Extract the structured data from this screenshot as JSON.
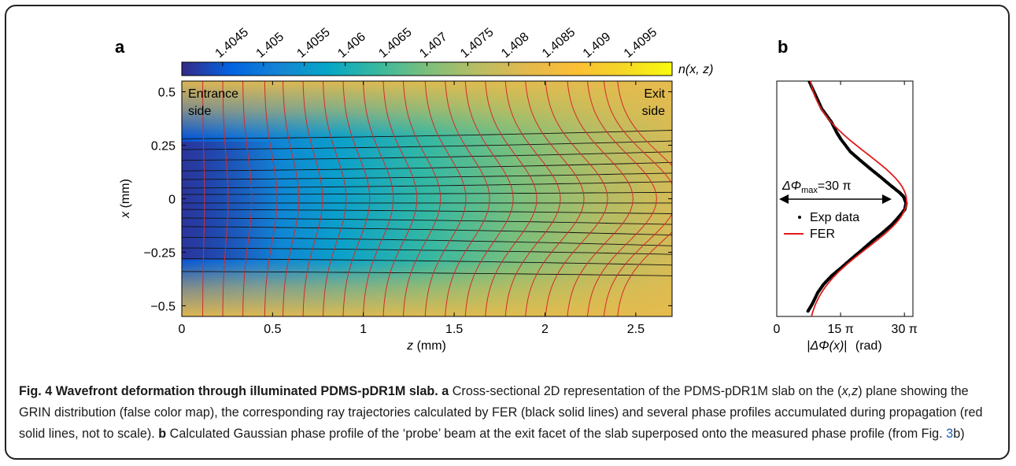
{
  "figure": {
    "panel_a_label": "a",
    "panel_b_label": "b",
    "colorbar_label_text": "n(x, z)",
    "annotation_entrance_1": "Entrance",
    "annotation_entrance_2": "side",
    "annotation_exit_1": "Exit",
    "annotation_exit_2": "side",
    "a_xlabel_var": "z",
    "a_xlabel_unit": "(mm)",
    "a_ylabel_var": "x",
    "a_ylabel_unit": "(mm)",
    "b_xlabel_left": "|",
    "b_xlabel_var": "ΔΦ(x)",
    "b_xlabel_right": "|",
    "b_xlabel_unit": "(rad)",
    "b_annotation_prefix": "ΔΦ",
    "b_annotation_sub": "max",
    "b_annotation_value": "=30 π",
    "legend_exp": "Exp data",
    "legend_fer": "FER"
  },
  "colors": {
    "ray_lines": "#111111",
    "phase_profiles": "#d42a2a",
    "fer_curve": "#e01b1b",
    "exp_points": "#000000",
    "caption_link": "#1a5fb4"
  },
  "caption": {
    "fig_label": "Fig. 4",
    "title": "Wavefront deformation through illuminated PDMS-pDR1M slab.",
    "a_label": "a",
    "text_a_1": "Cross-sectional 2D representation of the PDMS-pDR1M slab on the (",
    "text_a_italic": "x,z",
    "text_a_2": ") plane showing the GRIN distribution (false color map), the corresponding ray trajectories calculated by FER (black solid lines) and several phase profiles accumulated during propagation (red solid lines, not to scale).",
    "b_label": "b",
    "text_b_1": "Calculated Gaussian phase profile of the ‘probe’ beam at the exit facet of the slab superposed onto the measured phase profile (from Fig.",
    "ref": "3",
    "text_b_2": "b)"
  },
  "chart_data": [
    {
      "type": "heatmap",
      "panel": "a",
      "title": "",
      "xlabel": "z (mm)",
      "ylabel": "x (mm)",
      "xlim": [
        0,
        2.7
      ],
      "ylim": [
        -0.55,
        0.55
      ],
      "xticks": [
        0,
        0.5,
        1,
        1.5,
        2,
        2.5
      ],
      "xtick_labels": [
        "0",
        "0.5",
        "1",
        "1.5",
        "2",
        "2.5"
      ],
      "yticks": [
        0.5,
        0.25,
        0,
        -0.25,
        -0.5
      ],
      "ytick_labels": [
        "0.5",
        "0.25",
        "0",
        "−0.25",
        "−0.5"
      ],
      "colorbar": {
        "label": "n(x, z)",
        "range": [
          1.404,
          1.41
        ],
        "ticks": [
          1.4045,
          1.405,
          1.4055,
          1.406,
          1.4065,
          1.407,
          1.4075,
          1.408,
          1.4085,
          1.409,
          1.4095
        ],
        "tick_labels": [
          "1.4045",
          "1.405",
          "1.4055",
          "1.406",
          "1.4065",
          "1.407",
          "1.4075",
          "1.408",
          "1.4085",
          "1.409",
          "1.4095"
        ],
        "colormap": "parula"
      },
      "ray_start_x_mm": [
        0.28,
        0.23,
        0.18,
        0.13,
        0.09,
        0.05,
        0.02,
        -0.02,
        -0.05,
        -0.09,
        -0.13,
        -0.18,
        -0.23,
        -0.28,
        -0.34
      ],
      "ray_end_x_mm": [
        0.32,
        0.27,
        0.22,
        0.17,
        0.12,
        0.08,
        0.03,
        -0.02,
        -0.07,
        -0.12,
        -0.17,
        -0.22,
        -0.26,
        -0.31,
        -0.36
      ],
      "phase_profile_z_mm": [
        0.12,
        0.24,
        0.36,
        0.49,
        0.6,
        0.72,
        0.84,
        0.96,
        1.08,
        1.2,
        1.32,
        1.45,
        1.57,
        1.69,
        1.81,
        1.93,
        2.05,
        2.17,
        2.3,
        2.42,
        2.52,
        2.6
      ],
      "phase_profile_max_shift_mm": [
        0.005,
        0.015,
        0.025,
        0.035,
        0.045,
        0.055,
        0.065,
        0.075,
        0.085,
        0.095,
        0.105,
        0.115,
        0.125,
        0.135,
        0.145,
        0.155,
        0.165,
        0.175,
        0.185,
        0.195,
        0.205,
        0.21
      ]
    },
    {
      "type": "scatter",
      "panel": "b",
      "title": "",
      "xlabel": "|ΔΦ(x)| (rad)",
      "ylabel": "",
      "xlim": [
        0,
        32
      ],
      "ylim": [
        -0.55,
        0.55
      ],
      "xticks": [
        0,
        15,
        30
      ],
      "xtick_labels": [
        "0",
        "15 π",
        "30 π"
      ],
      "annotation": "ΔΦmax=30 π",
      "legend": [
        "Exp data",
        "FER"
      ],
      "series": [
        {
          "name": "Exp data",
          "x_over_pi": [
            7.6,
            9.2,
            10.6,
            12.8,
            14.1,
            15.0,
            17.3,
            19.6,
            22.0,
            24.5,
            26.9,
            28.8,
            29.8,
            30.4,
            30.1,
            28.9,
            27.1,
            24.8,
            22.3,
            20.0,
            17.6,
            15.3,
            12.9,
            11.0,
            9.6,
            8.4,
            7.2
          ],
          "x_mm": [
            0.55,
            0.48,
            0.42,
            0.36,
            0.31,
            0.28,
            0.22,
            0.18,
            0.14,
            0.1,
            0.06,
            0.03,
            0.01,
            -0.02,
            -0.05,
            -0.08,
            -0.12,
            -0.16,
            -0.2,
            -0.24,
            -0.28,
            -0.32,
            -0.36,
            -0.4,
            -0.44,
            -0.49,
            -0.53
          ]
        },
        {
          "name": "FER",
          "gaussian_amplitude_over_pi": 23.5,
          "gaussian_offset_over_pi": 7,
          "gaussian_center_mm": -0.01,
          "gaussian_sigma_mm": 0.22
        }
      ]
    }
  ]
}
